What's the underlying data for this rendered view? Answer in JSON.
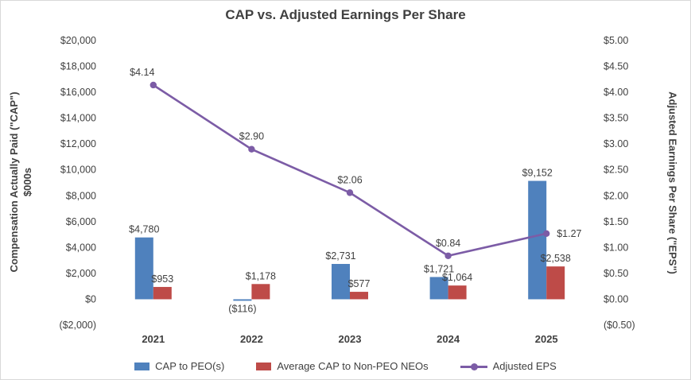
{
  "chart_data": {
    "type": "combo",
    "title": "CAP vs. Adjusted Earnings Per Share",
    "categories": [
      "2021",
      "2022",
      "2023",
      "2024",
      "2025"
    ],
    "series": [
      {
        "name": "CAP to PEO(s)",
        "type": "bar",
        "axis": "left",
        "color": "#4F81BD",
        "values": [
          4780,
          -116,
          2731,
          1721,
          9152
        ],
        "labels": [
          "$4,780",
          "($116)",
          "$2,731",
          "$1,721",
          "$9,152"
        ]
      },
      {
        "name": "Average CAP to Non-PEO NEOs",
        "type": "bar",
        "axis": "left",
        "color": "#BE4B48",
        "values": [
          953,
          1178,
          577,
          1064,
          2538
        ],
        "labels": [
          "$953",
          "$1,178",
          "$577",
          "$1,064",
          "$2,538"
        ]
      },
      {
        "name": "Adjusted EPS",
        "type": "line",
        "axis": "right",
        "color": "#7C5CA6",
        "values": [
          4.14,
          2.9,
          2.06,
          0.84,
          1.27
        ],
        "labels": [
          "$4.14",
          "$2.90",
          "$2.06",
          "$0.84",
          "$1.27"
        ]
      }
    ],
    "left_axis": {
      "label_line1": "Compensation Actually Paid (\"CAP\")",
      "label_line2": "$000s",
      "min": -2000,
      "max": 20000,
      "tick_step": 2000,
      "ticks": [
        "$20,000",
        "$18,000",
        "$16,000",
        "$14,000",
        "$12,000",
        "$10,000",
        "$8,000",
        "$6,000",
        "$4,000",
        "$2,000",
        "$0",
        "($2,000)"
      ]
    },
    "right_axis": {
      "label": "Adjusted Earnings Per Share (\"EPS\")",
      "min": -0.5,
      "max": 5.0,
      "tick_step": 0.5,
      "ticks": [
        "$5.00",
        "$4.50",
        "$4.00",
        "$3.50",
        "$3.00",
        "$2.50",
        "$2.00",
        "$1.50",
        "$1.00",
        "$0.50",
        "$0.00",
        "($0.50)"
      ]
    },
    "grid": false,
    "legend_position": "bottom",
    "legend": [
      "CAP to PEO(s)",
      "Average CAP to Non-PEO NEOs",
      "Adjusted EPS"
    ]
  }
}
